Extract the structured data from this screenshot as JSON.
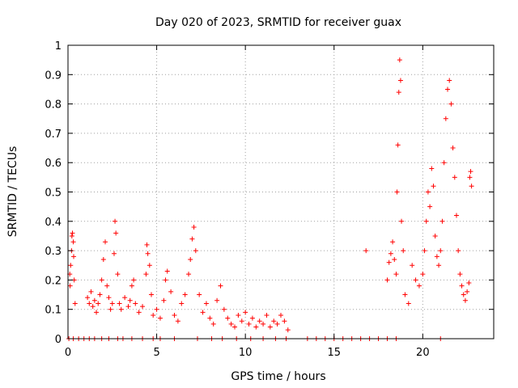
{
  "chart_data": {
    "type": "scatter",
    "title": "Day 020 of 2023, SRMTID for receiver guax",
    "xlabel": "GPS time / hours",
    "ylabel": "SRMTID / TECUs",
    "xlim": [
      0,
      24
    ],
    "ylim": [
      0,
      1
    ],
    "x_ticks": [
      0,
      5,
      10,
      15,
      20
    ],
    "y_ticks": [
      0,
      0.1,
      0.2,
      0.3,
      0.4,
      0.5,
      0.6,
      0.7,
      0.8,
      0.9,
      1
    ],
    "x_tick_labels": [
      "0",
      "5",
      "10",
      "15",
      "20"
    ],
    "y_tick_labels": [
      "0",
      "0.1",
      "0.2",
      "0.3",
      "0.4",
      "0.5",
      "0.6",
      "0.7",
      "0.8",
      "0.9",
      "1"
    ],
    "grid": true,
    "marker": "+",
    "colors": {
      "series": "#ff0000",
      "grid": "#a0a0a0",
      "axis": "#000000"
    },
    "series": [
      {
        "name": "SRMTID",
        "points": [
          [
            0.1,
            0.22
          ],
          [
            0.15,
            0.25
          ],
          [
            0.2,
            0.3
          ],
          [
            0.25,
            0.36
          ],
          [
            0.3,
            0.33
          ],
          [
            0.35,
            0.2
          ],
          [
            0.4,
            0.12
          ],
          [
            0.12,
            0.18
          ],
          [
            0.22,
            0.35
          ],
          [
            0.32,
            0.28
          ],
          [
            1.1,
            0.14
          ],
          [
            1.2,
            0.12
          ],
          [
            1.3,
            0.16
          ],
          [
            1.4,
            0.11
          ],
          [
            1.5,
            0.13
          ],
          [
            1.6,
            0.09
          ],
          [
            1.7,
            0.12
          ],
          [
            1.8,
            0.15
          ],
          [
            1.9,
            0.2
          ],
          [
            2.0,
            0.27
          ],
          [
            2.1,
            0.33
          ],
          [
            2.2,
            0.18
          ],
          [
            2.3,
            0.14
          ],
          [
            2.4,
            0.1
          ],
          [
            2.5,
            0.12
          ],
          [
            2.6,
            0.29
          ],
          [
            2.65,
            0.4
          ],
          [
            2.7,
            0.36
          ],
          [
            2.8,
            0.22
          ],
          [
            2.9,
            0.12
          ],
          [
            3.0,
            0.1
          ],
          [
            3.2,
            0.14
          ],
          [
            3.4,
            0.11
          ],
          [
            3.5,
            0.13
          ],
          [
            3.6,
            0.18
          ],
          [
            3.7,
            0.2
          ],
          [
            3.8,
            0.12
          ],
          [
            4.0,
            0.09
          ],
          [
            4.2,
            0.11
          ],
          [
            4.4,
            0.22
          ],
          [
            4.45,
            0.32
          ],
          [
            4.5,
            0.29
          ],
          [
            4.6,
            0.25
          ],
          [
            4.7,
            0.15
          ],
          [
            4.8,
            0.08
          ],
          [
            5.0,
            0.1
          ],
          [
            5.2,
            0.07
          ],
          [
            5.4,
            0.13
          ],
          [
            5.5,
            0.2
          ],
          [
            5.6,
            0.23
          ],
          [
            5.8,
            0.16
          ],
          [
            6.0,
            0.08
          ],
          [
            6.2,
            0.06
          ],
          [
            6.4,
            0.12
          ],
          [
            6.6,
            0.15
          ],
          [
            6.8,
            0.22
          ],
          [
            6.9,
            0.27
          ],
          [
            7.0,
            0.34
          ],
          [
            7.1,
            0.38
          ],
          [
            7.2,
            0.3
          ],
          [
            7.4,
            0.15
          ],
          [
            7.6,
            0.09
          ],
          [
            7.8,
            0.12
          ],
          [
            8.0,
            0.07
          ],
          [
            8.2,
            0.05
          ],
          [
            8.4,
            0.13
          ],
          [
            8.6,
            0.18
          ],
          [
            8.8,
            0.1
          ],
          [
            9.0,
            0.07
          ],
          [
            9.2,
            0.05
          ],
          [
            9.4,
            0.04
          ],
          [
            9.6,
            0.08
          ],
          [
            9.8,
            0.06
          ],
          [
            10.0,
            0.09
          ],
          [
            10.2,
            0.05
          ],
          [
            10.4,
            0.07
          ],
          [
            10.6,
            0.04
          ],
          [
            10.8,
            0.06
          ],
          [
            11.0,
            0.05
          ],
          [
            11.2,
            0.08
          ],
          [
            11.4,
            0.04
          ],
          [
            11.6,
            0.06
          ],
          [
            11.8,
            0.05
          ],
          [
            12.0,
            0.08
          ],
          [
            12.2,
            0.06
          ],
          [
            12.4,
            0.03
          ],
          [
            16.8,
            0.3
          ],
          [
            18.0,
            0.2
          ],
          [
            18.1,
            0.26
          ],
          [
            18.2,
            0.29
          ],
          [
            18.3,
            0.33
          ],
          [
            18.4,
            0.27
          ],
          [
            18.5,
            0.22
          ],
          [
            18.55,
            0.5
          ],
          [
            18.6,
            0.66
          ],
          [
            18.65,
            0.84
          ],
          [
            18.7,
            0.95
          ],
          [
            18.75,
            0.88
          ],
          [
            18.8,
            0.4
          ],
          [
            18.9,
            0.3
          ],
          [
            19.0,
            0.15
          ],
          [
            19.2,
            0.12
          ],
          [
            19.4,
            0.25
          ],
          [
            19.6,
            0.2
          ],
          [
            19.8,
            0.18
          ],
          [
            20.0,
            0.22
          ],
          [
            20.1,
            0.3
          ],
          [
            20.2,
            0.4
          ],
          [
            20.3,
            0.5
          ],
          [
            20.4,
            0.45
          ],
          [
            20.5,
            0.58
          ],
          [
            20.6,
            0.52
          ],
          [
            20.7,
            0.35
          ],
          [
            20.8,
            0.28
          ],
          [
            20.9,
            0.25
          ],
          [
            21.0,
            0.3
          ],
          [
            21.1,
            0.4
          ],
          [
            21.2,
            0.6
          ],
          [
            21.3,
            0.75
          ],
          [
            21.4,
            0.85
          ],
          [
            21.5,
            0.88
          ],
          [
            21.6,
            0.8
          ],
          [
            21.7,
            0.65
          ],
          [
            21.8,
            0.55
          ],
          [
            21.9,
            0.42
          ],
          [
            22.0,
            0.3
          ],
          [
            22.1,
            0.22
          ],
          [
            22.2,
            0.18
          ],
          [
            22.3,
            0.15
          ],
          [
            22.4,
            0.13
          ],
          [
            22.5,
            0.16
          ],
          [
            22.6,
            0.19
          ],
          [
            22.65,
            0.55
          ],
          [
            22.7,
            0.57
          ],
          [
            22.75,
            0.52
          ],
          [
            0.05,
            0
          ],
          [
            0.3,
            0
          ],
          [
            0.6,
            0
          ],
          [
            0.9,
            0
          ],
          [
            1.2,
            0
          ],
          [
            1.5,
            0
          ],
          [
            1.9,
            0
          ],
          [
            2.3,
            0
          ],
          [
            2.8,
            0
          ],
          [
            3.1,
            0
          ],
          [
            3.6,
            0
          ],
          [
            4.2,
            0
          ],
          [
            4.8,
            0
          ],
          [
            5.2,
            0
          ],
          [
            6.0,
            0
          ],
          [
            7.3,
            0
          ],
          [
            8.1,
            0
          ],
          [
            8.7,
            0
          ],
          [
            9.5,
            0
          ],
          [
            10.3,
            0
          ],
          [
            11.0,
            0
          ],
          [
            11.7,
            0
          ],
          [
            12.3,
            0
          ],
          [
            13.5,
            0
          ],
          [
            14.0,
            0
          ],
          [
            14.5,
            0
          ],
          [
            15.0,
            0
          ],
          [
            15.5,
            0
          ],
          [
            16.0,
            0
          ],
          [
            16.5,
            0
          ],
          [
            17.0,
            0
          ],
          [
            17.5,
            0
          ],
          [
            18.0,
            0
          ],
          [
            18.5,
            0
          ],
          [
            21.0,
            0
          ]
        ]
      }
    ]
  }
}
